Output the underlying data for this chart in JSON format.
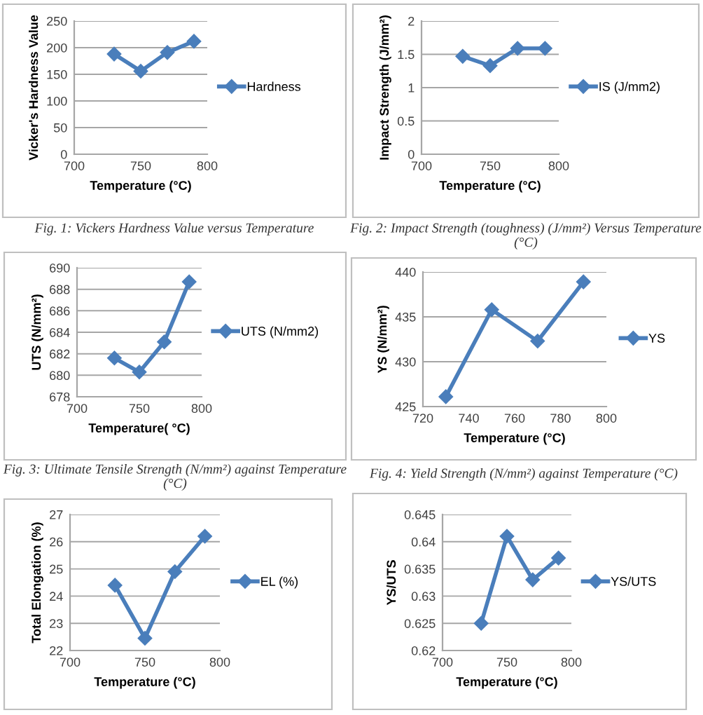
{
  "chart_data": [
    {
      "type": "line",
      "xlabel": "Temperature (°C)",
      "ylabel": "Vicker's Hardness Value",
      "x": [
        730,
        750,
        770,
        790
      ],
      "xlim": [
        700,
        800
      ],
      "xticks": [
        700,
        750,
        800
      ],
      "ylim": [
        0,
        250
      ],
      "yticks": [
        0,
        50,
        100,
        150,
        200,
        250
      ],
      "grid": "y",
      "legend": "right",
      "marker": "diamond",
      "line_style": "solid",
      "series": [
        {
          "name": "Hardness",
          "color": "#4a7ebb",
          "values": [
            188,
            156,
            191,
            212
          ]
        }
      ],
      "annotations": [
        "Fig. 1: Vickers Hardness Value versus Temperature"
      ]
    },
    {
      "type": "line",
      "xlabel": "Temperature (°C)",
      "ylabel": "Impact Strength (J/mm²)",
      "x": [
        730,
        750,
        770,
        790
      ],
      "xlim": [
        700,
        800
      ],
      "xticks": [
        700,
        750,
        800
      ],
      "ylim": [
        0,
        2
      ],
      "yticks": [
        0,
        0.5,
        1,
        1.5,
        2
      ],
      "grid": "y",
      "legend": "right",
      "marker": "diamond",
      "line_style": "solid",
      "series": [
        {
          "name": "IS (J/mm2)",
          "color": "#4a7ebb",
          "values": [
            1.47,
            1.33,
            1.59,
            1.59
          ]
        }
      ],
      "annotations": [
        "Fig. 2: Impact Strength (toughness) (J/mm²) Versus Temperature (°C)"
      ]
    },
    {
      "type": "line",
      "xlabel": "Temperature( °C)",
      "ylabel": "UTS (N/mm²)",
      "x": [
        730,
        750,
        770,
        790
      ],
      "xlim": [
        700,
        800
      ],
      "xticks": [
        700,
        750,
        800
      ],
      "ylim": [
        678,
        690
      ],
      "yticks": [
        678,
        680,
        682,
        684,
        686,
        688,
        690
      ],
      "grid": "y",
      "legend": "right",
      "marker": "diamond",
      "line_style": "solid",
      "series": [
        {
          "name": "UTS (N/mm2)",
          "color": "#4a7ebb",
          "values": [
            681.6,
            680.3,
            683.1,
            688.7
          ]
        }
      ],
      "annotations": [
        "Fig. 3: Ultimate Tensile Strength (N/mm²) against Temperature (°C)"
      ]
    },
    {
      "type": "line",
      "xlabel": "Temperature (°C)",
      "ylabel": "YS (N/mm²)",
      "x": [
        730,
        750,
        770,
        790
      ],
      "xlim": [
        720,
        800
      ],
      "xticks": [
        720,
        740,
        760,
        780,
        800
      ],
      "ylim": [
        425,
        440
      ],
      "yticks": [
        425,
        430,
        435,
        440
      ],
      "grid": "y",
      "legend": "right",
      "marker": "diamond",
      "line_style": "solid",
      "series": [
        {
          "name": "YS",
          "color": "#4a7ebb",
          "values": [
            426.1,
            435.8,
            432.3,
            438.9
          ]
        }
      ],
      "annotations": [
        "Fig. 4: Yield Strength (N/mm²) against Temperature (°C)"
      ]
    },
    {
      "type": "line",
      "xlabel": "Temperature (°C)",
      "ylabel": "Total Elongation (%)",
      "x": [
        730,
        750,
        770,
        790
      ],
      "xlim": [
        700,
        800
      ],
      "xticks": [
        700,
        750,
        800
      ],
      "ylim": [
        22,
        27
      ],
      "yticks": [
        22,
        23,
        24,
        25,
        26,
        27
      ],
      "grid": "y",
      "legend": "right",
      "marker": "diamond",
      "line_style": "solid",
      "series": [
        {
          "name": "EL (%)",
          "color": "#4a7ebb",
          "values": [
            24.4,
            22.45,
            24.9,
            26.2
          ]
        }
      ]
    },
    {
      "type": "line",
      "xlabel": "Temperature (°C)",
      "ylabel": "YS/UTS",
      "x": [
        730,
        750,
        770,
        790
      ],
      "xlim": [
        700,
        800
      ],
      "xticks": [
        700,
        750,
        800
      ],
      "ylim": [
        0.62,
        0.645
      ],
      "yticks": [
        0.62,
        0.625,
        0.63,
        0.635,
        0.64,
        0.645
      ],
      "grid": "y",
      "legend": "right",
      "marker": "diamond",
      "line_style": "solid",
      "series": [
        {
          "name": "YS/UTS",
          "color": "#4a7ebb",
          "values": [
            0.625,
            0.641,
            0.633,
            0.637
          ]
        }
      ]
    }
  ]
}
